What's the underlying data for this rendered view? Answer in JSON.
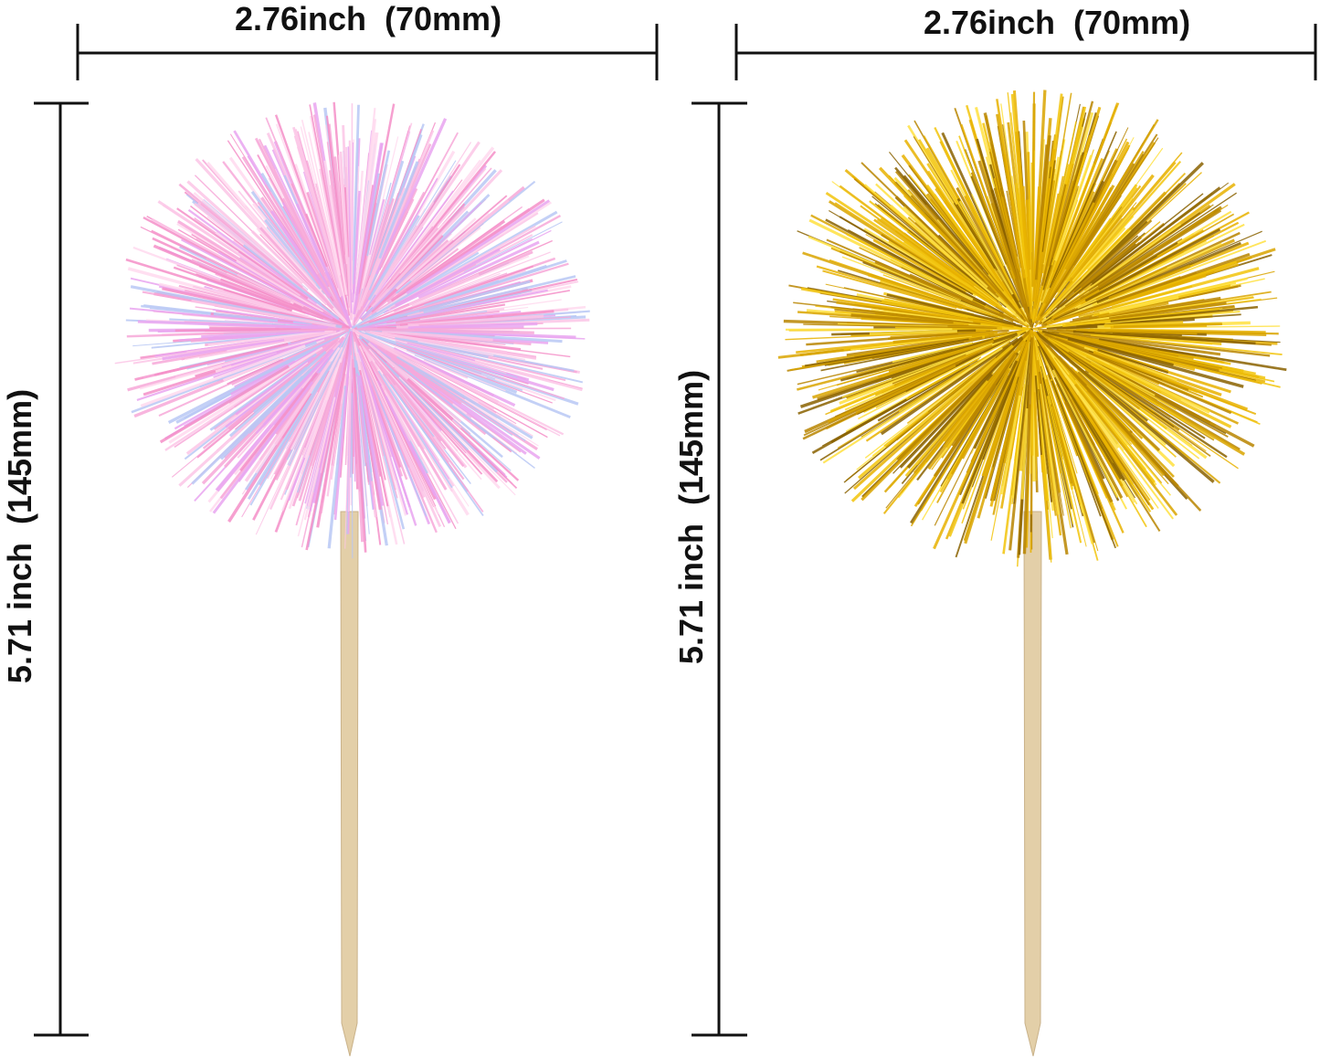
{
  "left_product": {
    "width_label": "2.76inch  (70mm)",
    "height_label": "5.71 inch  (145mm)",
    "color": "pink iridescent",
    "colors": [
      "#f7a8d8",
      "#fbc6e6",
      "#e9a4f0",
      "#b8c8f5",
      "#ffd9ef",
      "#f48fc8"
    ]
  },
  "right_product": {
    "width_label": "2.76inch  (70mm)",
    "height_label": "5.71 inch  (145mm)",
    "color": "gold",
    "colors": [
      "#d9a400",
      "#f2c40c",
      "#b98500",
      "#ffe040",
      "#e8b200",
      "#8a6200"
    ]
  },
  "stick_color": "#e3cfa8",
  "line_color": "#111111"
}
